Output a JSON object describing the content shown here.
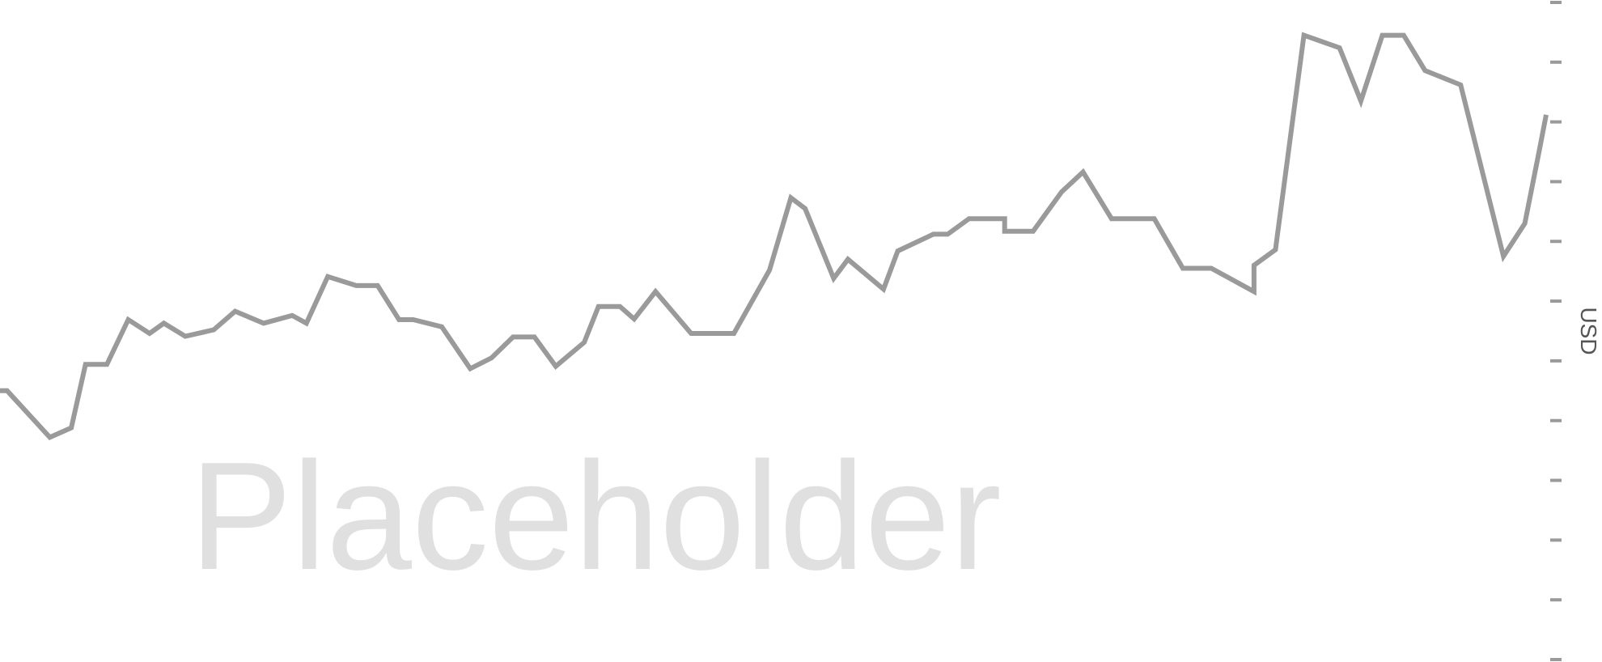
{
  "watermark": "Placeholder",
  "chart_data": {
    "type": "line",
    "title": "",
    "xlabel": "",
    "ylabel": "USD",
    "ylim": [
      0,
      11
    ],
    "y_tick_count": 12,
    "y_tick_labels_shown": false,
    "axis_side": "right",
    "grid": false,
    "legend": "none",
    "colors": {
      "line": "#9a9a9a",
      "ticks": "#9a9a9a",
      "watermark": "#e0e0e0",
      "axis_label": "#555555"
    },
    "series": [
      {
        "values": [
          [
            0,
            4.5
          ],
          [
            1,
            4.5
          ],
          [
            7,
            3.72
          ],
          [
            10,
            3.88
          ],
          [
            12,
            4.94
          ],
          [
            15,
            4.94
          ],
          [
            18,
            5.69
          ],
          [
            21,
            5.46
          ],
          [
            23,
            5.63
          ],
          [
            26,
            5.41
          ],
          [
            30,
            5.52
          ],
          [
            33,
            5.83
          ],
          [
            37,
            5.63
          ],
          [
            41,
            5.76
          ],
          [
            43,
            5.63
          ],
          [
            46,
            6.41
          ],
          [
            50,
            6.26
          ],
          [
            53,
            6.26
          ],
          [
            56,
            5.69
          ],
          [
            58,
            5.69
          ],
          [
            62,
            5.57
          ],
          [
            66,
            4.87
          ],
          [
            69,
            5.05
          ],
          [
            72,
            5.4
          ],
          [
            75,
            5.4
          ],
          [
            78,
            4.91
          ],
          [
            82,
            5.31
          ],
          [
            84,
            5.91
          ],
          [
            87,
            5.91
          ],
          [
            89,
            5.7
          ],
          [
            92,
            6.16
          ],
          [
            97,
            5.46
          ],
          [
            103,
            5.46
          ],
          [
            108,
            6.52
          ],
          [
            111,
            7.73
          ],
          [
            113,
            7.55
          ],
          [
            117,
            6.38
          ],
          [
            119,
            6.7
          ],
          [
            124,
            6.2
          ],
          [
            126,
            6.84
          ],
          [
            131,
            7.12
          ],
          [
            133,
            7.12
          ],
          [
            136,
            7.38
          ],
          [
            141,
            7.38
          ],
          [
            141,
            7.17
          ],
          [
            145,
            7.17
          ],
          [
            149,
            7.83
          ],
          [
            152,
            8.16
          ],
          [
            156,
            7.38
          ],
          [
            162,
            7.38
          ],
          [
            166,
            6.55
          ],
          [
            170,
            6.55
          ],
          [
            176,
            6.16
          ],
          [
            176,
            6.6
          ],
          [
            179,
            6.86
          ],
          [
            183,
            10.45
          ],
          [
            188,
            10.24
          ],
          [
            191,
            9.35
          ],
          [
            194,
            10.45
          ],
          [
            197,
            10.45
          ],
          [
            200,
            9.86
          ],
          [
            205,
            9.62
          ],
          [
            211,
            6.75
          ],
          [
            214,
            7.3
          ],
          [
            216,
            8.5
          ],
          [
            217,
            9.12
          ]
        ]
      }
    ],
    "x_range": [
      0,
      217
    ]
  }
}
